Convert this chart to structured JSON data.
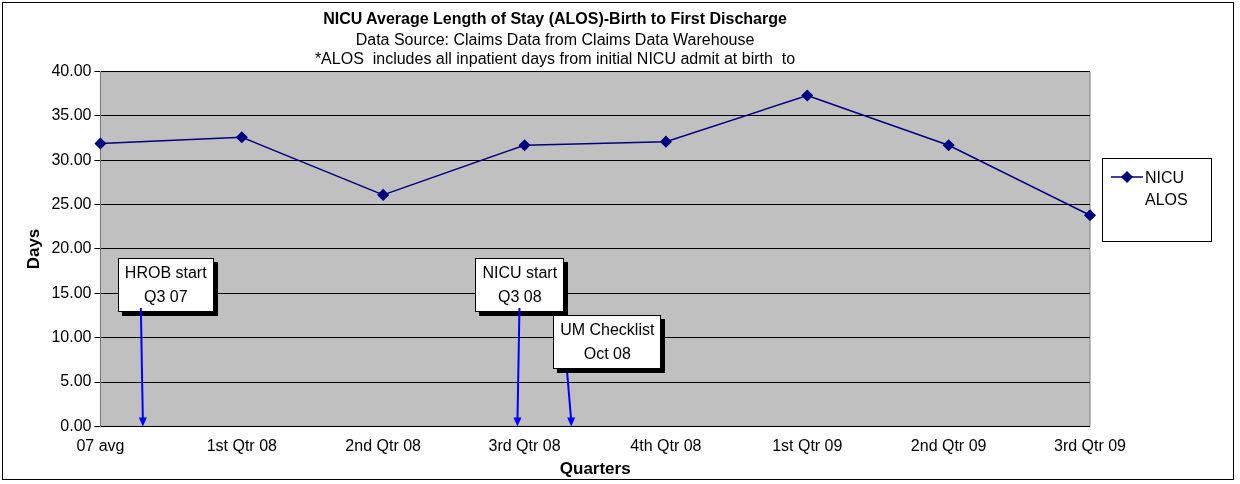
{
  "chart_data": {
    "type": "line",
    "title": "NICU Average Length of Stay (ALOS)-Birth to First Discharge",
    "subtitle": "Data Source: Claims Data from Claims Data Warehouse",
    "xlabel": "Quarters",
    "ylabel": "Days",
    "categories": [
      "07 avg",
      "1st Qtr 08",
      "2nd Qtr 08",
      "3rd Qtr 08",
      "4th Qtr 08",
      "1st Qtr 09",
      "2nd Qtr 09",
      "3rd Qtr 09"
    ],
    "series": [
      {
        "name": "NICU ALOS",
        "color": "#000080",
        "values": [
          31.9,
          32.6,
          26.1,
          31.7,
          32.1,
          37.3,
          31.7,
          23.8
        ]
      }
    ],
    "ylim": [
      0,
      40
    ],
    "yticks": [
      {
        "value": 0,
        "label": "0.00"
      },
      {
        "value": 5,
        "label": "5.00"
      },
      {
        "value": 10,
        "label": "10.00"
      },
      {
        "value": 15,
        "label": "15.00"
      },
      {
        "value": 20,
        "label": "20.00"
      },
      {
        "value": 25,
        "label": "25.00"
      },
      {
        "value": 30,
        "label": "30.00"
      },
      {
        "value": 35,
        "label": "35.00"
      },
      {
        "value": 40,
        "label": "40.00"
      }
    ],
    "grid": "y",
    "legend": "right",
    "marker": "diamond",
    "line_style": "solid",
    "annotations": [
      "*ALOS  includes all inpatient days from initial NICU admit at birth  to",
      "HROB start\nQ3 07",
      "NICU start\nQ3 08",
      "UM Checklist\nOct 08"
    ]
  }
}
